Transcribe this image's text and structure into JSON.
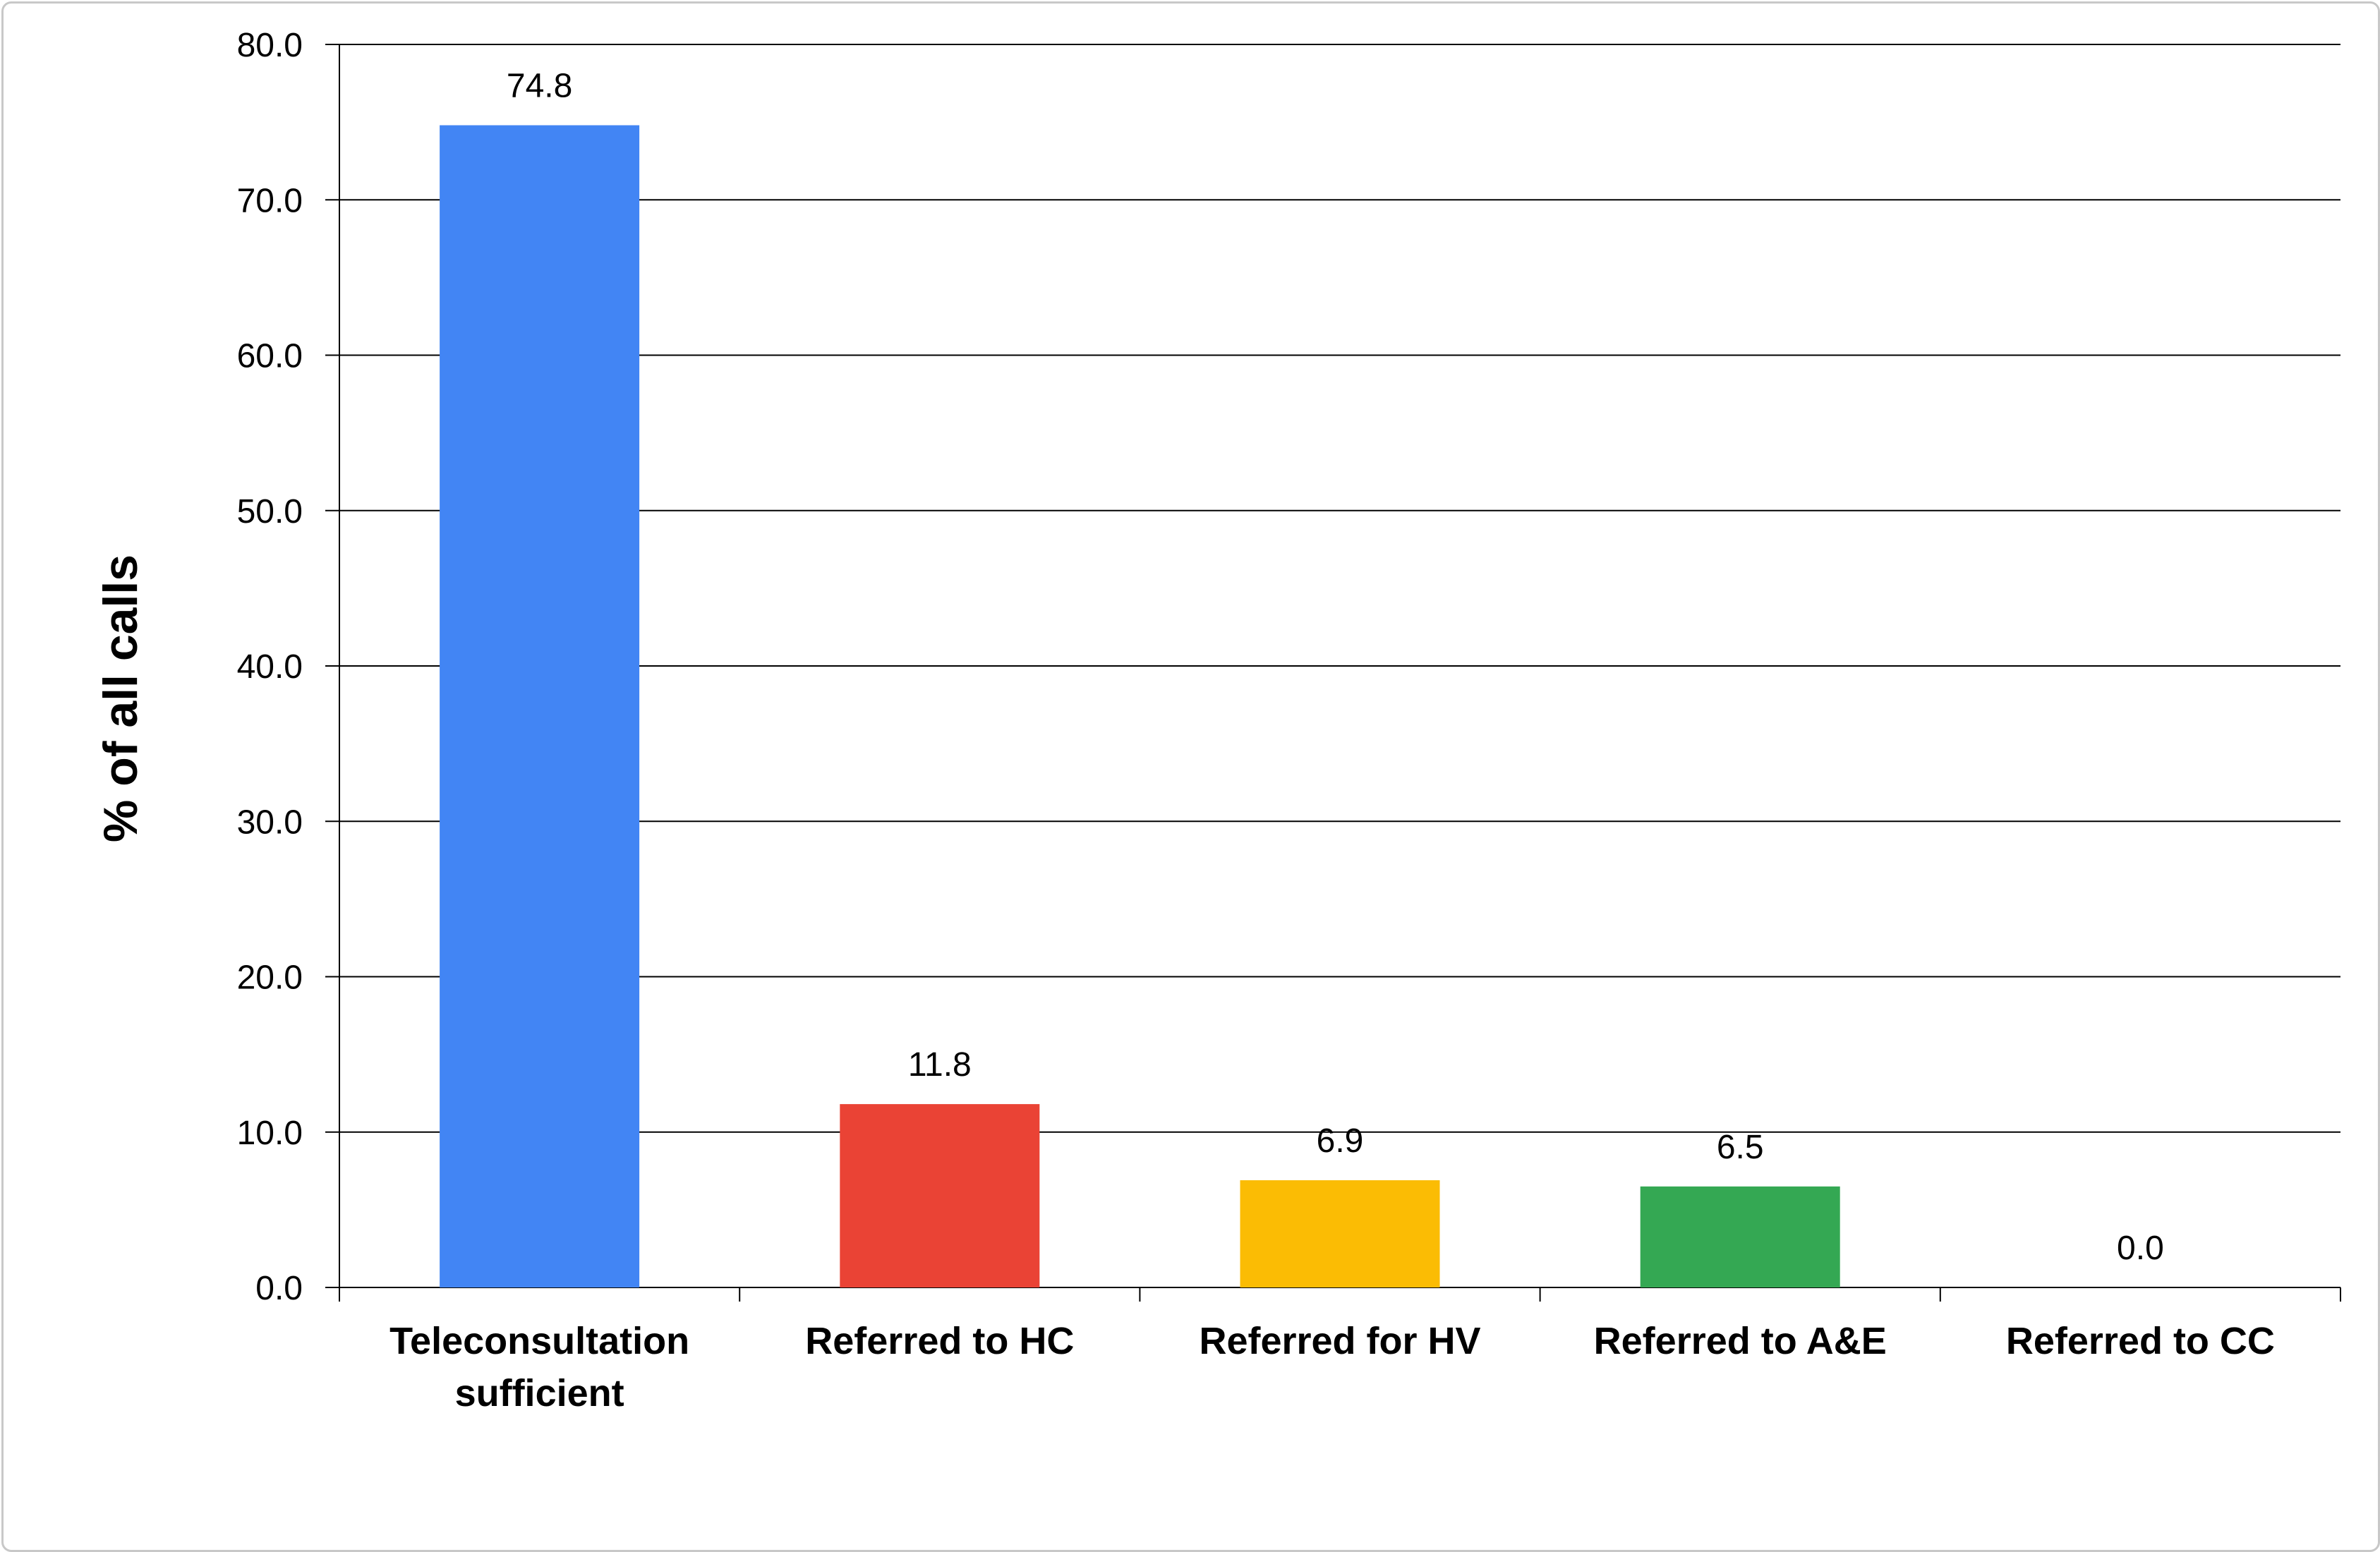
{
  "chart_data": {
    "type": "bar",
    "categories": [
      [
        "Teleconsultation",
        "sufficient"
      ],
      [
        "Referred to HC"
      ],
      [
        "Referred for HV"
      ],
      [
        "Referred to A&E"
      ],
      [
        "Referred to CC"
      ]
    ],
    "values": [
      74.8,
      11.8,
      6.9,
      6.5,
      0.0
    ],
    "data_labels": [
      "74.8",
      "11.8",
      "6.9",
      "6.5",
      "0.0"
    ],
    "bar_colors": [
      "#4285f4",
      "#ea4335",
      "#fbbc04",
      "#34a853",
      "#34a853"
    ],
    "ylabel": "% of all calls",
    "ylim": [
      0,
      80
    ],
    "yticks": [
      "0.0",
      "10.0",
      "20.0",
      "30.0",
      "40.0",
      "50.0",
      "60.0",
      "70.0",
      "80.0"
    ],
    "grid": true,
    "legend": "none"
  }
}
